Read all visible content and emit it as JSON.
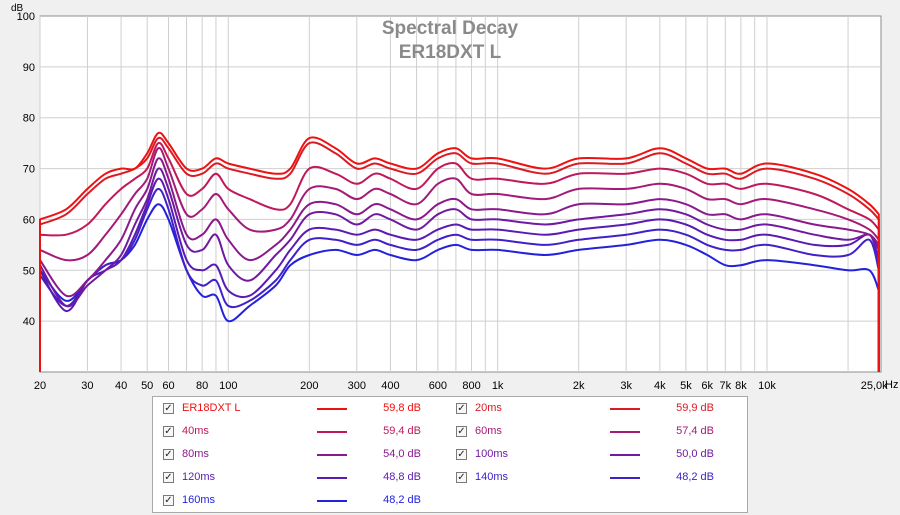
{
  "chart_data": {
    "type": "line",
    "title": "Spectral Decay",
    "subtitle": "ER18DXT L",
    "ylabel": "dB",
    "xlabel": "",
    "x_unit": "Hz",
    "x_scale": "log",
    "xlim": [
      20,
      26500
    ],
    "ylim": [
      30,
      100
    ],
    "grid": true,
    "legend_position": "bottom",
    "x_ticks": [
      {
        "v": 20,
        "t": "20"
      },
      {
        "v": 30,
        "t": "30"
      },
      {
        "v": 40,
        "t": "40"
      },
      {
        "v": 50,
        "t": "50"
      },
      {
        "v": 60,
        "t": "60"
      },
      {
        "v": 80,
        "t": "80"
      },
      {
        "v": 100,
        "t": "100"
      },
      {
        "v": 200,
        "t": "200"
      },
      {
        "v": 300,
        "t": "300"
      },
      {
        "v": 400,
        "t": "400"
      },
      {
        "v": 600,
        "t": "600"
      },
      {
        "v": 800,
        "t": "800"
      },
      {
        "v": 1000,
        "t": "1k"
      },
      {
        "v": 2000,
        "t": "2k"
      },
      {
        "v": 3000,
        "t": "3k"
      },
      {
        "v": 4000,
        "t": "4k"
      },
      {
        "v": 5000,
        "t": "5k"
      },
      {
        "v": 6000,
        "t": "6k"
      },
      {
        "v": 7000,
        "t": "7k"
      },
      {
        "v": 8000,
        "t": "8k"
      },
      {
        "v": 10000,
        "t": "10k"
      },
      {
        "v": 25000,
        "t": "25,0k"
      }
    ],
    "y_ticks": [
      {
        "v": 40,
        "t": "40"
      },
      {
        "v": 50,
        "t": "50"
      },
      {
        "v": 60,
        "t": "60"
      },
      {
        "v": 70,
        "t": "70"
      },
      {
        "v": 80,
        "t": "80"
      },
      {
        "v": 90,
        "t": "90"
      },
      {
        "v": 100,
        "t": "100"
      }
    ],
    "x": [
      20,
      25,
      30,
      35,
      40,
      45,
      50,
      55,
      60,
      70,
      80,
      90,
      100,
      120,
      150,
      170,
      200,
      250,
      300,
      350,
      400,
      500,
      600,
      700,
      800,
      1000,
      1500,
      2000,
      3000,
      4000,
      5000,
      6000,
      7000,
      8000,
      10000,
      15000,
      20000,
      24000,
      26000
    ],
    "series": [
      {
        "name": "ER18DXT L",
        "summary": "59,8 dB",
        "color": "#ee1111",
        "values": [
          60,
          62,
          66,
          69,
          70,
          70,
          73,
          77,
          75,
          70,
          70,
          72,
          71,
          70,
          69,
          70,
          76,
          74,
          71,
          72,
          71,
          70,
          73,
          74,
          72,
          72,
          70,
          72,
          72,
          74,
          72,
          70,
          70,
          69,
          71,
          69,
          66,
          63,
          61
        ]
      },
      {
        "name": "20ms",
        "summary": "59,9 dB",
        "color": "#dc1a24",
        "values": [
          59,
          61,
          65,
          68,
          69,
          70,
          72,
          76,
          74,
          69,
          69,
          71,
          70,
          69,
          68,
          69,
          75,
          73,
          70,
          71,
          70,
          69,
          72,
          73,
          71,
          71,
          69,
          71,
          71,
          73,
          71,
          69,
          69,
          68,
          70,
          68,
          65,
          62,
          60
        ]
      },
      {
        "name": "40ms",
        "summary": "59,4 dB",
        "color": "#c0195a",
        "values": [
          57,
          57,
          59,
          63,
          66,
          68,
          70,
          75,
          72,
          65,
          66,
          69,
          66,
          64,
          62,
          63,
          70,
          69,
          67,
          69,
          68,
          66,
          70,
          71,
          68,
          68,
          67,
          69,
          69,
          70,
          69,
          67,
          67,
          66,
          67,
          65,
          62,
          60,
          58
        ]
      },
      {
        "name": "60ms",
        "summary": "57,4 dB",
        "color": "#a41a78",
        "values": [
          54,
          52,
          53,
          57,
          61,
          65,
          68,
          74,
          70,
          61,
          62,
          65,
          62,
          58,
          58,
          60,
          66,
          66,
          64,
          66,
          65,
          63,
          67,
          68,
          65,
          65,
          64,
          66,
          66,
          67,
          66,
          64,
          64,
          63,
          64,
          62,
          60,
          58,
          56
        ]
      },
      {
        "name": "80ms",
        "summary": "54,0 dB",
        "color": "#8a1a8c",
        "values": [
          52,
          45,
          48,
          52,
          56,
          62,
          66,
          72,
          68,
          57,
          57,
          60,
          56,
          52,
          55,
          58,
          63,
          63,
          61,
          63,
          62,
          60,
          63,
          64,
          62,
          62,
          61,
          63,
          63,
          64,
          63,
          61,
          61,
          60,
          61,
          59,
          58,
          57,
          55
        ]
      },
      {
        "name": "100ms",
        "summary": "50,0 dB",
        "color": "#6f1aa0",
        "values": [
          51,
          43,
          47,
          50,
          53,
          59,
          64,
          70,
          66,
          55,
          54,
          57,
          51,
          48,
          53,
          56,
          61,
          61,
          59,
          61,
          60,
          58,
          61,
          62,
          60,
          60,
          59,
          60,
          61,
          62,
          61,
          59,
          58,
          58,
          59,
          57,
          56,
          57,
          54
        ]
      },
      {
        "name": "120ms",
        "summary": "48,8 dB",
        "color": "#5a1ab4",
        "values": [
          50,
          42,
          48,
          50,
          52,
          57,
          63,
          68,
          64,
          52,
          50,
          51,
          46,
          45,
          50,
          54,
          58,
          58,
          57,
          58,
          57,
          56,
          58,
          59,
          58,
          58,
          57,
          58,
          59,
          60,
          59,
          57,
          56,
          56,
          57,
          55,
          55,
          57,
          52
        ]
      },
      {
        "name": "140ms",
        "summary": "48,2 dB",
        "color": "#4020c8",
        "values": [
          49,
          43,
          48,
          51,
          52,
          56,
          62,
          66,
          62,
          50,
          47,
          48,
          43,
          44,
          48,
          52,
          56,
          56,
          55,
          56,
          55,
          54,
          56,
          57,
          56,
          56,
          55,
          56,
          57,
          58,
          57,
          55,
          54,
          54,
          55,
          53,
          53,
          56,
          50
        ]
      },
      {
        "name": "160ms",
        "summary": "48,2 dB",
        "color": "#2222dd",
        "values": [
          50,
          44,
          48,
          51,
          52,
          55,
          60,
          63,
          60,
          50,
          45,
          45,
          40,
          43,
          47,
          51,
          53,
          54,
          53,
          54,
          53,
          52,
          54,
          55,
          54,
          54,
          53,
          54,
          55,
          56,
          55,
          53,
          51,
          51,
          52,
          51,
          50,
          50,
          46
        ]
      }
    ]
  },
  "legend": {
    "check_mark": "✓",
    "entries": [
      {
        "name": "ER18DXT L",
        "value": "59,8 dB",
        "color": "#ee1111"
      },
      {
        "name": "20ms",
        "value": "59,9 dB",
        "color": "#dc1a24"
      },
      {
        "name": "40ms",
        "value": "59,4 dB",
        "color": "#c0195a"
      },
      {
        "name": "60ms",
        "value": "57,4 dB",
        "color": "#a41a78"
      },
      {
        "name": "80ms",
        "value": "54,0 dB",
        "color": "#8a1a8c"
      },
      {
        "name": "100ms",
        "value": "50,0 dB",
        "color": "#6f1aa0"
      },
      {
        "name": "120ms",
        "value": "48,8 dB",
        "color": "#5a1ab4"
      },
      {
        "name": "140ms",
        "value": "48,2 dB",
        "color": "#4020c8"
      },
      {
        "name": "160ms",
        "value": "48,2 dB",
        "color": "#2222dd"
      }
    ]
  }
}
